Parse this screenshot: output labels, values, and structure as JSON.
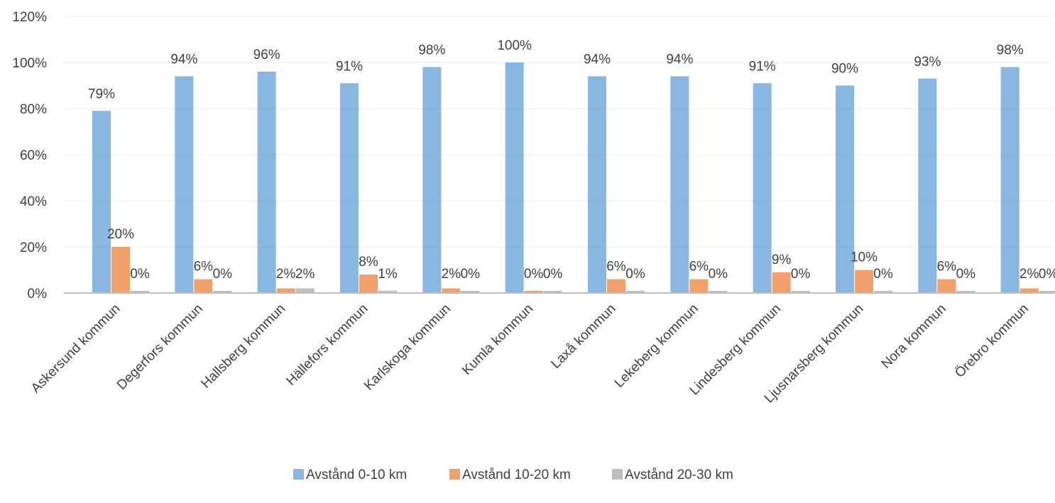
{
  "chart_data": {
    "type": "bar",
    "title": "",
    "xlabel": "",
    "ylabel": "",
    "ylim": [
      0,
      120
    ],
    "yticks": [
      0,
      20,
      40,
      60,
      80,
      100,
      120
    ],
    "ytick_labels": [
      "0%",
      "20%",
      "40%",
      "60%",
      "80%",
      "100%",
      "120%"
    ],
    "grid": true,
    "legend_position": "bottom",
    "categories": [
      "Askersund kommun",
      "Degerfors kommun",
      "Hallsberg kommun",
      "Hällefors kommun",
      "Karlskoga kommun",
      "Kumla kommun",
      "Laxå kommun",
      "Lekeberg kommun",
      "Lindesberg kommun",
      "Ljusnarsberg kommun",
      "Nora kommun",
      "Örebro kommun"
    ],
    "series": [
      {
        "name": "Avstånd 0-10 km",
        "color": "#5B9BD5",
        "values": [
          79,
          94,
          96,
          91,
          98,
          100,
          94,
          94,
          91,
          90,
          93,
          98
        ],
        "labels": [
          "79%",
          "94%",
          "96%",
          "91%",
          "98%",
          "100%",
          "94%",
          "94%",
          "91%",
          "90%",
          "93%",
          "98%"
        ]
      },
      {
        "name": "Avstånd 10-20 km",
        "color": "#ED7D31",
        "values": [
          20,
          6,
          2,
          8,
          2,
          0,
          6,
          6,
          9,
          10,
          6,
          2
        ],
        "labels": [
          "20%",
          "6%",
          "2%",
          "8%",
          "2%",
          "0%",
          "6%",
          "6%",
          "9%",
          "10%",
          "6%",
          "2%"
        ]
      },
      {
        "name": "Avstånd 20-30 km",
        "color": "#A5A5A5",
        "values": [
          0,
          0,
          2,
          1,
          0,
          0,
          0,
          0,
          0,
          0,
          0,
          0
        ],
        "labels": [
          "0%",
          "0%",
          "2%",
          "1%",
          "0%",
          "0%",
          "0%",
          "0%",
          "0%",
          "0%",
          "0%",
          "0%"
        ]
      }
    ]
  }
}
